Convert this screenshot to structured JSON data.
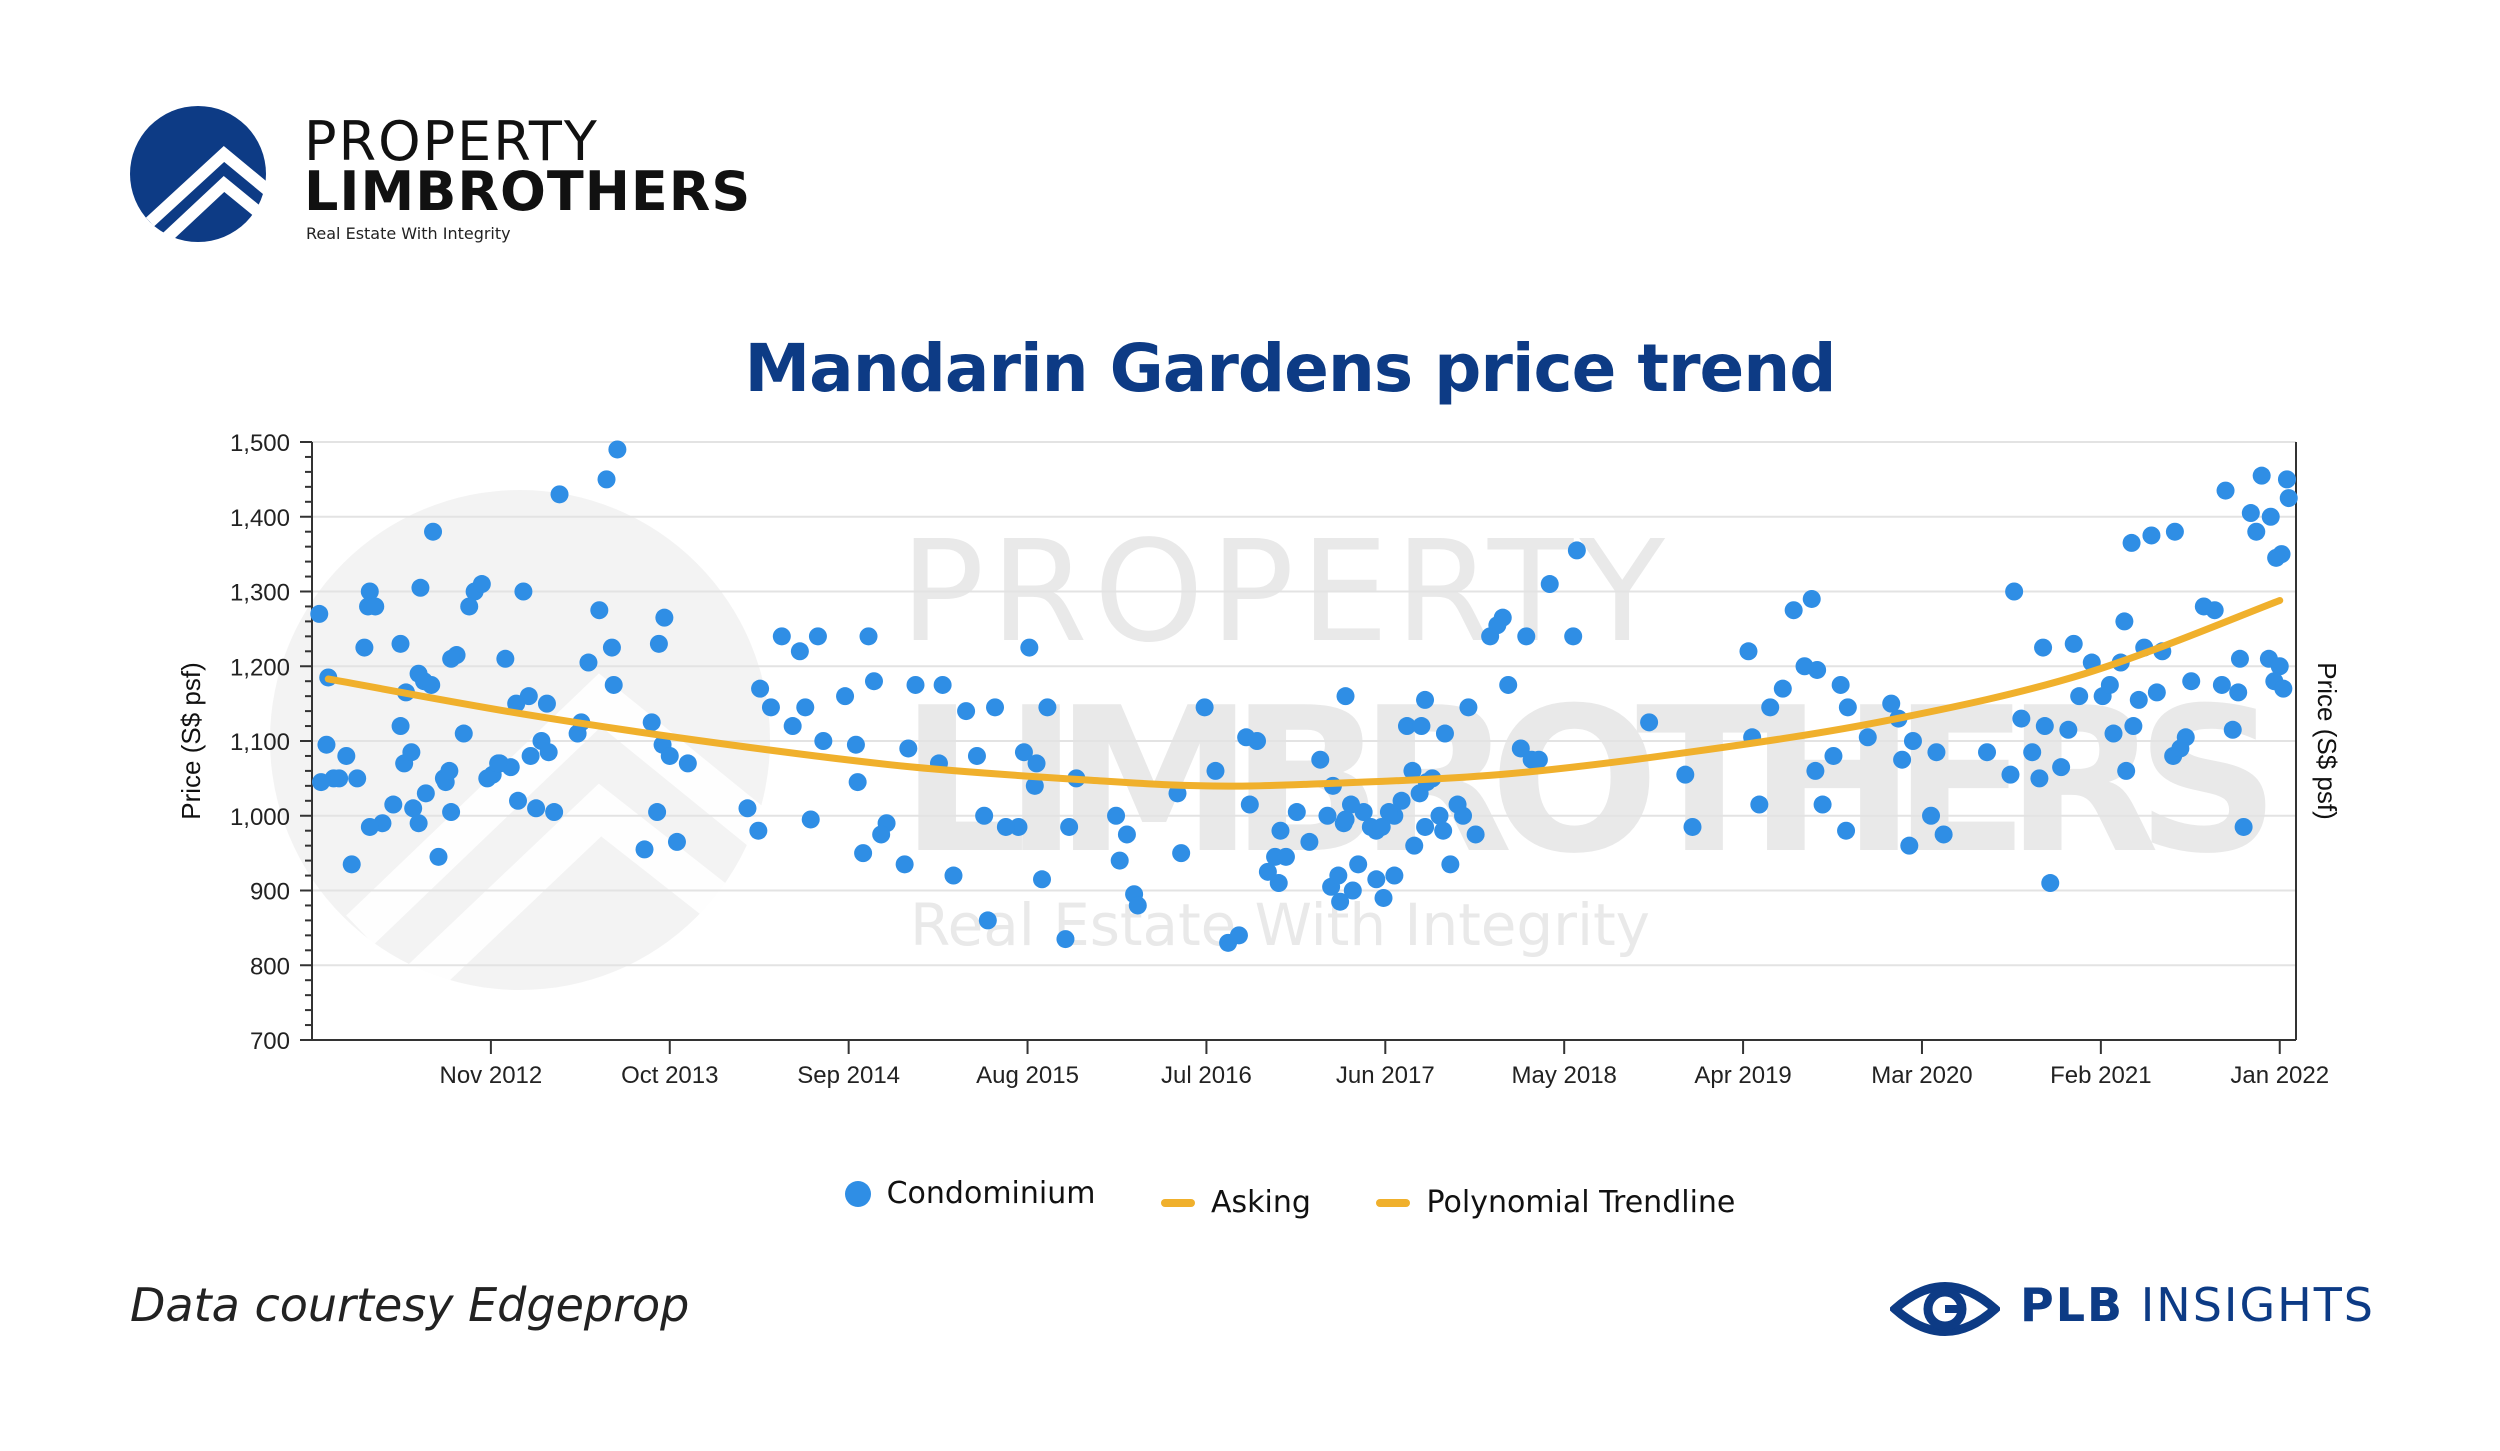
{
  "logo": {
    "line1": "PROPERTY",
    "line2": "LIMBROTHERS",
    "tagline": "Real Estate With Integrity"
  },
  "watermark": {
    "line1": "PROPERTY",
    "line2": "LIMBROTHERS",
    "tagline": "Real Estate With Integrity"
  },
  "source_note": "Data courtesy Edgeprop",
  "brand": {
    "bold": "PLB",
    "rest": " INSIGHTS"
  },
  "colors": {
    "points": "#2f8ee5",
    "trend": "#f0b02c",
    "title": "#0d3b85",
    "brand": "#0d3b85"
  },
  "legend": [
    "Condominium",
    "Asking",
    "Polynomial Trendline"
  ],
  "chart_data": {
    "type": "scatter",
    "title": "Mandarin Gardens price trend",
    "ylabel": "Price (S$ psf)",
    "ylabel_right": "Price (S$ psf)",
    "ylim": [
      700,
      1500
    ],
    "yticks": [
      700,
      800,
      900,
      1000,
      1100,
      1200,
      1300,
      1400,
      1500
    ],
    "ytick_labels": [
      "700",
      "800",
      "900",
      "1,000",
      "1,100",
      "1,200",
      "1,300",
      "1,400",
      "1,500"
    ],
    "xlim": [
      "2011-12",
      "2022-02"
    ],
    "xticks": [
      "2012-11",
      "2013-10",
      "2014-09",
      "2015-08",
      "2016-07",
      "2017-06",
      "2018-05",
      "2019-04",
      "2020-03",
      "2021-02",
      "2022-01"
    ],
    "xtick_labels": [
      "Nov 2012",
      "Oct 2013",
      "Sep 2014",
      "Aug 2015",
      "Jul 2016",
      "Jun 2017",
      "May 2018",
      "Apr 2019",
      "Mar 2020",
      "Feb 2021",
      "Jan 2022"
    ],
    "grid": "horizontal",
    "series": [
      {
        "name": "Condominium",
        "points": [
          [
            "2012-01",
            1270
          ],
          [
            "2012-01",
            1095
          ],
          [
            "2012-01",
            1050
          ],
          [
            "2012-01",
            1045
          ],
          [
            "2012-01",
            1185
          ],
          [
            "2012-02",
            935
          ],
          [
            "2012-02",
            1050
          ],
          [
            "2012-02",
            1080
          ],
          [
            "2012-03",
            1300
          ],
          [
            "2012-03",
            1050
          ],
          [
            "2012-03",
            1225
          ],
          [
            "2012-04",
            1280
          ],
          [
            "2012-04",
            1280
          ],
          [
            "2012-04",
            990
          ],
          [
            "2012-04",
            985
          ],
          [
            "2012-05",
            1015
          ],
          [
            "2012-05",
            1230
          ],
          [
            "2012-06",
            1070
          ],
          [
            "2012-06",
            1085
          ],
          [
            "2012-06",
            1190
          ],
          [
            "2012-06",
            1165
          ],
          [
            "2012-06",
            1010
          ],
          [
            "2012-06",
            1120
          ],
          [
            "2012-07",
            1180
          ],
          [
            "2012-07",
            1175
          ],
          [
            "2012-07",
            990
          ],
          [
            "2012-07",
            1030
          ],
          [
            "2012-07",
            1380
          ],
          [
            "2012-07",
            1305
          ],
          [
            "2012-08",
            1050
          ],
          [
            "2012-08",
            1005
          ],
          [
            "2012-08",
            945
          ],
          [
            "2012-08",
            1045
          ],
          [
            "2012-09",
            1060
          ],
          [
            "2012-09",
            1215
          ],
          [
            "2012-09",
            1110
          ],
          [
            "2012-09",
            1210
          ],
          [
            "2012-10",
            1300
          ],
          [
            "2012-10",
            1310
          ],
          [
            "2012-10",
            1280
          ],
          [
            "2012-11",
            1055
          ],
          [
            "2012-11",
            1070
          ],
          [
            "2012-11",
            1050
          ],
          [
            "2012-12",
            1065
          ],
          [
            "2012-12",
            1070
          ],
          [
            "2012-12",
            1210
          ],
          [
            "2013-01",
            1160
          ],
          [
            "2013-01",
            1150
          ],
          [
            "2013-01",
            1300
          ],
          [
            "2013-01",
            1080
          ],
          [
            "2013-01",
            1020
          ],
          [
            "2013-02",
            1100
          ],
          [
            "2013-02",
            1085
          ],
          [
            "2013-02",
            1010
          ],
          [
            "2013-03",
            1430
          ],
          [
            "2013-03",
            1150
          ],
          [
            "2013-03",
            1005
          ],
          [
            "2013-04",
            1110
          ],
          [
            "2013-05",
            1125
          ],
          [
            "2013-05",
            1205
          ],
          [
            "2013-06",
            1225
          ],
          [
            "2013-06",
            1275
          ],
          [
            "2013-06",
            1450
          ],
          [
            "2013-06",
            1175
          ],
          [
            "2013-07",
            1490
          ],
          [
            "2013-09",
            1005
          ],
          [
            "2013-09",
            955
          ],
          [
            "2013-09",
            1125
          ],
          [
            "2013-09",
            1230
          ],
          [
            "2013-10",
            1095
          ],
          [
            "2013-10",
            1080
          ],
          [
            "2013-10",
            965
          ],
          [
            "2013-10",
            1265
          ],
          [
            "2013-11",
            1070
          ],
          [
            "2014-03",
            1170
          ],
          [
            "2014-03",
            1010
          ],
          [
            "2014-04",
            1145
          ],
          [
            "2014-04",
            980
          ],
          [
            "2014-05",
            1240
          ],
          [
            "2014-06",
            1145
          ],
          [
            "2014-06",
            1120
          ],
          [
            "2014-06",
            1220
          ],
          [
            "2014-07",
            1100
          ],
          [
            "2014-07",
            995
          ],
          [
            "2014-07",
            1240
          ],
          [
            "2014-09",
            1045
          ],
          [
            "2014-09",
            1160
          ],
          [
            "2014-10",
            1240
          ],
          [
            "2014-10",
            1095
          ],
          [
            "2014-10",
            950
          ],
          [
            "2014-11",
            990
          ],
          [
            "2014-11",
            1180
          ],
          [
            "2014-11",
            975
          ],
          [
            "2014-12",
            935
          ],
          [
            "2015-01",
            1090
          ],
          [
            "2015-01",
            1175
          ],
          [
            "2015-02",
            1070
          ],
          [
            "2015-03",
            1175
          ],
          [
            "2015-04",
            1140
          ],
          [
            "2015-04",
            920
          ],
          [
            "2015-05",
            1080
          ],
          [
            "2015-05",
            1000
          ],
          [
            "2015-06",
            860
          ],
          [
            "2015-06",
            1145
          ],
          [
            "2015-07",
            985
          ],
          [
            "2015-07",
            985
          ],
          [
            "2015-08",
            1225
          ],
          [
            "2015-08",
            1070
          ],
          [
            "2015-08",
            1085
          ],
          [
            "2015-09",
            1145
          ],
          [
            "2015-09",
            1040
          ],
          [
            "2015-09",
            915
          ],
          [
            "2015-10",
            835
          ],
          [
            "2015-11",
            985
          ],
          [
            "2015-11",
            1050
          ],
          [
            "2016-01",
            1000
          ],
          [
            "2016-02",
            940
          ],
          [
            "2016-02",
            975
          ],
          [
            "2016-02",
            895
          ],
          [
            "2016-03",
            880
          ],
          [
            "2016-05",
            1030
          ],
          [
            "2016-06",
            950
          ],
          [
            "2016-07",
            1145
          ],
          [
            "2016-08",
            830
          ],
          [
            "2016-08",
            1060
          ],
          [
            "2016-09",
            840
          ],
          [
            "2016-09",
            1105
          ],
          [
            "2016-10",
            1015
          ],
          [
            "2016-10",
            1100
          ],
          [
            "2016-11",
            980
          ],
          [
            "2016-11",
            925
          ],
          [
            "2016-11",
            945
          ],
          [
            "2016-12",
            910
          ],
          [
            "2016-12",
            945
          ],
          [
            "2017-01",
            965
          ],
          [
            "2017-01",
            1005
          ],
          [
            "2017-02",
            1075
          ],
          [
            "2017-02",
            1000
          ],
          [
            "2017-03",
            905
          ],
          [
            "2017-03",
            920
          ],
          [
            "2017-03",
            1160
          ],
          [
            "2017-03",
            1040
          ],
          [
            "2017-03",
            885
          ],
          [
            "2017-04",
            990
          ],
          [
            "2017-04",
            1015
          ],
          [
            "2017-04",
            935
          ],
          [
            "2017-04",
            995
          ],
          [
            "2017-04",
            900
          ],
          [
            "2017-05",
            980
          ],
          [
            "2017-05",
            1005
          ],
          [
            "2017-05",
            985
          ],
          [
            "2017-06",
            1000
          ],
          [
            "2017-06",
            985
          ],
          [
            "2017-06",
            1005
          ],
          [
            "2017-06",
            915
          ],
          [
            "2017-06",
            890
          ],
          [
            "2017-07",
            1120
          ],
          [
            "2017-07",
            920
          ],
          [
            "2017-07",
            1020
          ],
          [
            "2017-08",
            1155
          ],
          [
            "2017-08",
            1060
          ],
          [
            "2017-08",
            1030
          ],
          [
            "2017-08",
            1045
          ],
          [
            "2017-08",
            960
          ],
          [
            "2017-08",
            1120
          ],
          [
            "2017-09",
            985
          ],
          [
            "2017-09",
            1050
          ],
          [
            "2017-09",
            1000
          ],
          [
            "2017-10",
            980
          ],
          [
            "2017-10",
            935
          ],
          [
            "2017-10",
            1015
          ],
          [
            "2017-10",
            1110
          ],
          [
            "2017-11",
            1145
          ],
          [
            "2017-11",
            975
          ],
          [
            "2017-11",
            1000
          ],
          [
            "2018-01",
            1265
          ],
          [
            "2018-01",
            1240
          ],
          [
            "2018-01",
            1255
          ],
          [
            "2018-02",
            1090
          ],
          [
            "2018-02",
            1175
          ],
          [
            "2018-03",
            1075
          ],
          [
            "2018-03",
            1075
          ],
          [
            "2018-03",
            1240
          ],
          [
            "2018-04",
            1310
          ],
          [
            "2018-05",
            1240
          ],
          [
            "2018-06",
            1355
          ],
          [
            "2018-10",
            1125
          ],
          [
            "2019-01",
            1055
          ],
          [
            "2019-01",
            985
          ],
          [
            "2019-04",
            1220
          ],
          [
            "2019-05",
            1105
          ],
          [
            "2019-05",
            1015
          ],
          [
            "2019-06",
            1170
          ],
          [
            "2019-06",
            1145
          ],
          [
            "2019-07",
            1275
          ],
          [
            "2019-08",
            1195
          ],
          [
            "2019-08",
            1200
          ],
          [
            "2019-08",
            1290
          ],
          [
            "2019-09",
            1060
          ],
          [
            "2019-09",
            1015
          ],
          [
            "2019-10",
            980
          ],
          [
            "2019-10",
            1080
          ],
          [
            "2019-10",
            1175
          ],
          [
            "2019-10",
            1145
          ],
          [
            "2019-12",
            1105
          ],
          [
            "2020-01",
            1150
          ],
          [
            "2020-01",
            1130
          ],
          [
            "2020-02",
            1075
          ],
          [
            "2020-02",
            960
          ],
          [
            "2020-03",
            1100
          ],
          [
            "2020-04",
            1085
          ],
          [
            "2020-04",
            975
          ],
          [
            "2020-04",
            1000
          ],
          [
            "2020-07",
            1085
          ],
          [
            "2020-08",
            1055
          ],
          [
            "2020-09",
            1300
          ],
          [
            "2020-09",
            1130
          ],
          [
            "2020-10",
            1120
          ],
          [
            "2020-10",
            1085
          ],
          [
            "2020-10",
            1050
          ],
          [
            "2020-11",
            1225
          ],
          [
            "2020-11",
            910
          ],
          [
            "2020-12",
            1230
          ],
          [
            "2020-12",
            1065
          ],
          [
            "2020-12",
            1115
          ],
          [
            "2021-01",
            1205
          ],
          [
            "2021-01",
            1160
          ],
          [
            "2021-02",
            1160
          ],
          [
            "2021-02",
            1175
          ],
          [
            "2021-03",
            1110
          ],
          [
            "2021-03",
            1205
          ],
          [
            "2021-04",
            1260
          ],
          [
            "2021-04",
            1365
          ],
          [
            "2021-04",
            1155
          ],
          [
            "2021-04",
            1060
          ],
          [
            "2021-04",
            1120
          ],
          [
            "2021-05",
            1165
          ],
          [
            "2021-05",
            1225
          ],
          [
            "2021-05",
            1375
          ],
          [
            "2021-06",
            1380
          ],
          [
            "2021-06",
            1220
          ],
          [
            "2021-07",
            1105
          ],
          [
            "2021-07",
            1080
          ],
          [
            "2021-07",
            1090
          ],
          [
            "2021-08",
            1280
          ],
          [
            "2021-08",
            1180
          ],
          [
            "2021-09",
            1275
          ],
          [
            "2021-09",
            1175
          ],
          [
            "2021-10",
            1435
          ],
          [
            "2021-10",
            1115
          ],
          [
            "2021-10",
            1210
          ],
          [
            "2021-11",
            985
          ],
          [
            "2021-11",
            1405
          ],
          [
            "2021-11",
            1165
          ],
          [
            "2021-12",
            1455
          ],
          [
            "2021-12",
            1210
          ],
          [
            "2021-12",
            1380
          ],
          [
            "2022-01",
            1200
          ],
          [
            "2022-01",
            1450
          ],
          [
            "2022-01",
            1180
          ],
          [
            "2022-01",
            1350
          ],
          [
            "2022-01",
            1425
          ],
          [
            "2022-01",
            1345
          ],
          [
            "2022-01",
            1170
          ],
          [
            "2022-01",
            1400
          ]
        ]
      },
      {
        "name": "Polynomial Trendline",
        "type": "line",
        "points": [
          [
            "2012-01",
            1183
          ],
          [
            "2013-01",
            1136
          ],
          [
            "2014-01",
            1097
          ],
          [
            "2015-01",
            1065
          ],
          [
            "2016-01",
            1046
          ],
          [
            "2016-07",
            1040
          ],
          [
            "2017-01",
            1042
          ],
          [
            "2018-01",
            1055
          ],
          [
            "2019-01",
            1086
          ],
          [
            "2020-01",
            1128
          ],
          [
            "2021-01",
            1190
          ],
          [
            "2022-01",
            1288
          ]
        ]
      }
    ]
  }
}
